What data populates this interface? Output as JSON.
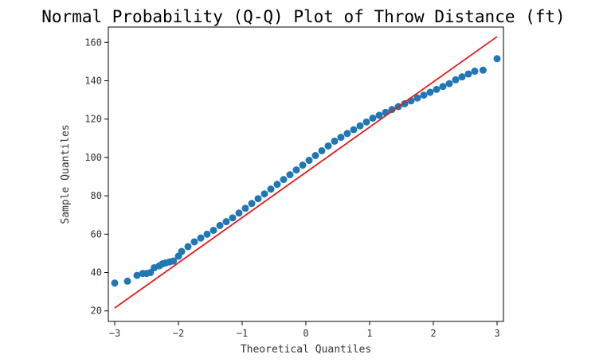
{
  "chart_data": {
    "type": "scatter",
    "title": "Normal Probability (Q-Q) Plot of Throw Distance (ft)",
    "xlabel": "Theoretical Quantiles",
    "ylabel": "Sample Quantiles",
    "xlim": [
      -3.1,
      3.1
    ],
    "ylim": [
      14.5,
      168
    ],
    "xticks": [
      -3,
      -2,
      -1,
      0,
      1,
      2,
      3
    ],
    "xtick_labels": [
      "−3",
      "−2",
      "−1",
      "0",
      "1",
      "2",
      "3"
    ],
    "yticks": [
      20,
      40,
      60,
      80,
      100,
      120,
      140,
      160
    ],
    "ytick_labels": [
      "20",
      "40",
      "60",
      "80",
      "100",
      "120",
      "140",
      "160"
    ],
    "grid": false,
    "legend": "none",
    "colors": {
      "points": "#1f77b4",
      "line": "#e41a1c",
      "axes": "#000000"
    },
    "series": [
      {
        "kind": "points",
        "x": [
          -3.0,
          -2.8,
          -2.65,
          -2.56,
          -2.5,
          -2.44,
          -2.38,
          -2.3,
          -2.25,
          -2.2,
          -2.14,
          -2.08,
          -2.0,
          -1.95,
          -1.85,
          -1.75,
          -1.65,
          -1.55,
          -1.45,
          -1.35,
          -1.25,
          -1.15,
          -1.05,
          -0.95,
          -0.85,
          -0.75,
          -0.65,
          -0.55,
          -0.45,
          -0.35,
          -0.25,
          -0.15,
          -0.05,
          0.05,
          0.15,
          0.25,
          0.35,
          0.45,
          0.55,
          0.65,
          0.75,
          0.85,
          0.95,
          1.05,
          1.15,
          1.25,
          1.35,
          1.45,
          1.55,
          1.65,
          1.75,
          1.85,
          1.95,
          2.05,
          2.15,
          2.25,
          2.35,
          2.45,
          2.55,
          2.65,
          2.78,
          3.0
        ],
        "y": [
          34.5,
          35.5,
          38.5,
          39.5,
          39.5,
          40.0,
          42.5,
          43.5,
          44.5,
          45.0,
          45.5,
          46.0,
          48.5,
          51.0,
          53.5,
          56.0,
          58.0,
          60.0,
          62.0,
          64.5,
          66.5,
          68.5,
          71.0,
          73.5,
          76.0,
          78.5,
          81.0,
          83.5,
          86.0,
          88.5,
          91.0,
          93.5,
          96.0,
          98.5,
          101.0,
          103.5,
          106.0,
          108.5,
          110.5,
          112.5,
          114.5,
          116.5,
          118.5,
          120.5,
          122.0,
          123.5,
          125.0,
          126.5,
          128.0,
          129.5,
          131.0,
          132.5,
          134.0,
          135.5,
          137.0,
          138.5,
          140.5,
          142.0,
          143.5,
          145.0,
          145.5,
          151.5
        ]
      },
      {
        "kind": "line",
        "x": [
          -3.0,
          3.0
        ],
        "y": [
          21.5,
          163.0
        ]
      }
    ]
  }
}
